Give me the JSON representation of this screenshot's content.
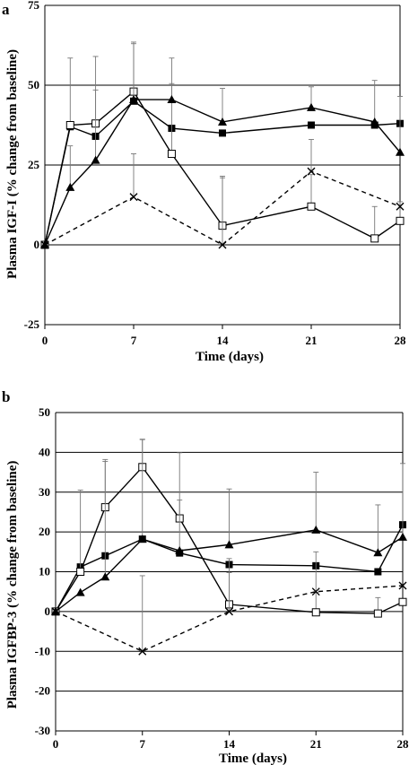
{
  "chart_data": [
    {
      "panel": "a",
      "type": "line",
      "xlabel": "Time (days)",
      "ylabel": "Plasma IGF-I (% change from baseline)",
      "xlim": [
        0,
        28
      ],
      "ylim": [
        -25,
        75
      ],
      "xticks": [
        "0",
        "7",
        "14",
        "21",
        "28"
      ],
      "yticks": [
        "-25",
        "0",
        "25",
        "50",
        "75"
      ],
      "grid": "horizontal",
      "series": [
        {
          "marker": "filled-square",
          "line": "solid",
          "x": [
            0,
            2,
            4,
            7,
            10,
            14,
            21,
            26,
            28
          ],
          "y": [
            0,
            37,
            34,
            45,
            36.5,
            35,
            37.5,
            37.5,
            38
          ],
          "err": [
            0,
            0,
            0,
            0,
            0,
            0,
            0,
            0,
            0
          ]
        },
        {
          "marker": "open-square",
          "line": "solid",
          "x": [
            0,
            2,
            4,
            7,
            10,
            14,
            21,
            26,
            28
          ],
          "y": [
            0,
            37.5,
            38,
            48,
            28.5,
            6,
            12,
            2,
            7.5
          ],
          "err": [
            0,
            21,
            21,
            15,
            22,
            15,
            10,
            10,
            6
          ]
        },
        {
          "marker": "filled-triangle",
          "line": "solid",
          "x": [
            0,
            2,
            4,
            7,
            10,
            14,
            21,
            26,
            28
          ],
          "y": [
            0,
            18,
            26.5,
            45.5,
            45.5,
            38.5,
            43,
            38.5,
            29
          ],
          "err": [
            0,
            13,
            22,
            18,
            13,
            10.5,
            6.5,
            13,
            17.5
          ]
        },
        {
          "marker": "cross",
          "line": "dashed",
          "x": [
            0,
            7,
            14,
            21,
            28
          ],
          "y": [
            0,
            15,
            0,
            23,
            12
          ],
          "err": [
            0,
            13.5,
            21.5,
            10,
            0
          ]
        }
      ]
    },
    {
      "panel": "b",
      "type": "line",
      "xlabel": "Time (days)",
      "ylabel": "Plasma IGFBP-3 (% change from baseline)",
      "xlim": [
        0,
        28
      ],
      "ylim": [
        -30,
        50
      ],
      "xticks": [
        "0",
        "7",
        "14",
        "21",
        "28"
      ],
      "yticks": [
        "-30",
        "-20",
        "-10",
        "0",
        "10",
        "20",
        "30",
        "40",
        "50"
      ],
      "grid": "horizontal",
      "series": [
        {
          "marker": "filled-square",
          "line": "solid",
          "x": [
            0,
            2,
            4,
            7,
            10,
            14,
            21,
            26,
            28
          ],
          "y": [
            0,
            11.2,
            14,
            18.2,
            14.7,
            11.8,
            11.5,
            10,
            21.8
          ],
          "err": [
            0,
            0,
            0,
            0,
            0,
            0,
            0,
            0,
            0
          ]
        },
        {
          "marker": "open-square",
          "line": "solid",
          "x": [
            0,
            2,
            4,
            7,
            10,
            14,
            21,
            26,
            28
          ],
          "y": [
            0,
            10,
            26.2,
            36.3,
            23.4,
            1.8,
            -0.2,
            -0.5,
            2.4
          ],
          "err": [
            0,
            20.5,
            12,
            7,
            16.5,
            11.5,
            5,
            4,
            0
          ]
        },
        {
          "marker": "filled-triangle",
          "line": "solid",
          "x": [
            0,
            2,
            4,
            7,
            10,
            14,
            21,
            26,
            28
          ],
          "y": [
            0,
            4.8,
            8.7,
            18.2,
            15.3,
            16.8,
            20.5,
            14.8,
            18.7
          ],
          "err": [
            0,
            0,
            29,
            25,
            12.7,
            14,
            14.5,
            12,
            18.5
          ]
        },
        {
          "marker": "cross",
          "line": "dashed",
          "x": [
            0,
            7,
            14,
            21,
            28
          ],
          "y": [
            0,
            -10,
            0,
            5,
            6.5
          ],
          "err": [
            0,
            19,
            9.8,
            10,
            0
          ]
        }
      ]
    }
  ]
}
